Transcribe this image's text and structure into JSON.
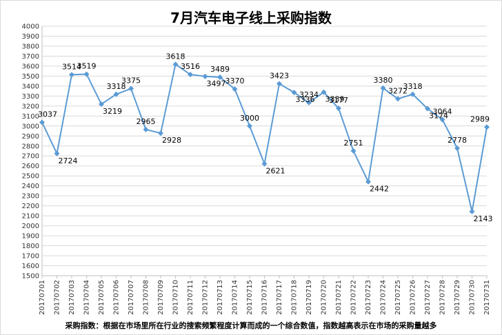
{
  "chart_data": {
    "type": "line",
    "title": "7月汽车电子线上采购指数",
    "xlabel": "",
    "ylabel": "",
    "ylim": [
      1500,
      4000
    ],
    "ytick_step": 100,
    "grid": true,
    "legend": "none",
    "categories": [
      "20170701",
      "20170702",
      "20170703",
      "20170704",
      "20170705",
      "20170706",
      "20170707",
      "20170708",
      "20170709",
      "20170710",
      "20170711",
      "20170712",
      "20170713",
      "20170714",
      "20170715",
      "20170716",
      "20170717",
      "20170718",
      "20170719",
      "20170720",
      "20170721",
      "20170722",
      "20170723",
      "20170724",
      "20170725",
      "20170726",
      "20170727",
      "20170728",
      "20170729",
      "20170730",
      "20170731"
    ],
    "values": [
      3037,
      2724,
      3514,
      3519,
      3219,
      3318,
      3375,
      2965,
      2928,
      3618,
      3516,
      3497,
      3489,
      3370,
      3000,
      2621,
      3423,
      3336,
      3234,
      3339,
      3177,
      2751,
      2442,
      3380,
      3272,
      3318,
      3174,
      3064,
      2778,
      2143,
      2989
    ],
    "label_pos": [
      "above",
      "below",
      "above",
      "above",
      "below",
      "above",
      "above",
      "above",
      "below",
      "above",
      "above",
      "below",
      "above",
      "above",
      "above",
      "below",
      "above",
      "below",
      "above",
      "below",
      "above",
      "above",
      "below",
      "above",
      "above",
      "above",
      "below",
      "above",
      "above",
      "below",
      "above"
    ],
    "footnote": "采购指数：根据在市场里所在行业的搜索频繁程度计算而成的一个综合数值，指数越高表示在市场的采购量越多",
    "colors": {
      "line": "#5b9bd5",
      "grid": "#d9d9d9",
      "axis": "#bfbfbf"
    }
  }
}
